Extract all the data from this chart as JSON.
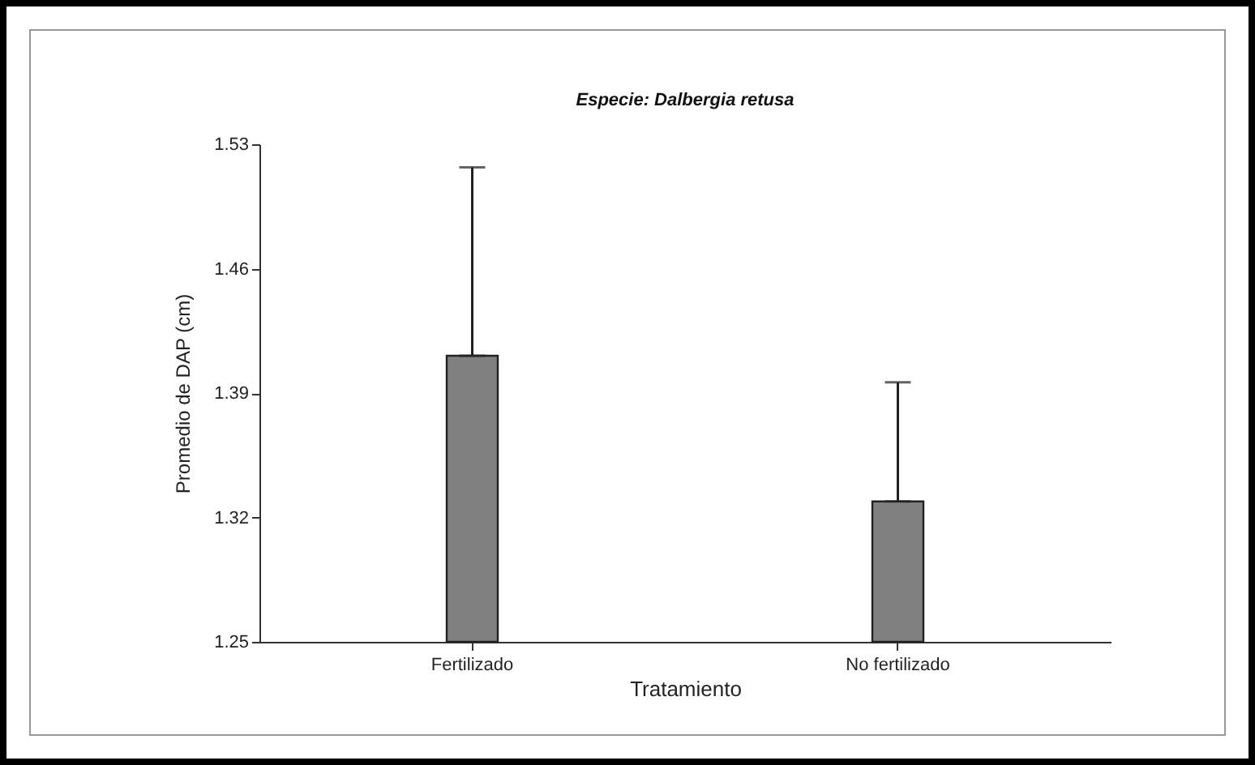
{
  "chart_data": {
    "type": "bar",
    "title": "Especie: Dalbergia retusa",
    "xlabel": "Tratamiento",
    "ylabel": "Promedio de DAP (cm)",
    "categories": [
      "Fertilizado",
      "No fertilizado"
    ],
    "values": [
      1.411,
      1.329
    ],
    "errors": [
      [
        1.411,
        1.517
      ],
      [
        1.329,
        1.396
      ]
    ],
    "color": "#808080",
    "ylim": [
      1.25,
      1.53
    ],
    "yticks": [
      1.25,
      1.32,
      1.39,
      1.46,
      1.53
    ]
  }
}
